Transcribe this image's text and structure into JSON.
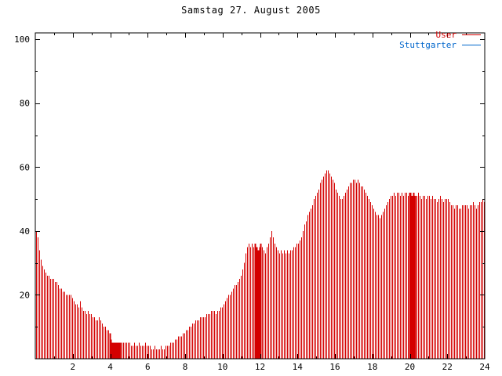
{
  "chart_data": {
    "type": "bar",
    "title": "Samstag 27. August 2005",
    "xlabel": "",
    "ylabel": "",
    "xlim": [
      0,
      24
    ],
    "ylim": [
      0,
      102
    ],
    "grid": false,
    "legend_position": "top-right",
    "x_tick_values": [
      2,
      4,
      6,
      8,
      10,
      12,
      14,
      16,
      18,
      20,
      22,
      24
    ],
    "x_tick_labels": [
      "2",
      "4",
      "6",
      "8",
      "10",
      "12",
      "14",
      "16",
      "18",
      "20",
      "22",
      "24"
    ],
    "x_minor_tick_step": 1,
    "y_tick_values": [
      20,
      40,
      60,
      80,
      100
    ],
    "y_tick_labels": [
      "20",
      "40",
      "60",
      "80",
      "100"
    ],
    "y_minor_tick_step": 10,
    "merged_bar_spans_hours": [
      [
        3.95,
        4.6
      ],
      [
        11.7,
        12.1
      ],
      [
        19.9,
        20.3
      ]
    ],
    "series": [
      {
        "name": "User",
        "color": "#d40000",
        "style": "impulses",
        "start_hour": 0,
        "interval_minutes": 5,
        "values": [
          40,
          38,
          34,
          31,
          29,
          28,
          27,
          26,
          26,
          25,
          25,
          25,
          24,
          24,
          23,
          22,
          22,
          21,
          21,
          20,
          20,
          20,
          20,
          19,
          18,
          17,
          17,
          16,
          18,
          16,
          15,
          15,
          14,
          15,
          14,
          14,
          13,
          13,
          12,
          12,
          13,
          12,
          11,
          10,
          10,
          9,
          9,
          8,
          6,
          5,
          5,
          5,
          5,
          5,
          5,
          5,
          5,
          5,
          5,
          5,
          5,
          4,
          4,
          5,
          4,
          4,
          5,
          4,
          4,
          4,
          5,
          4,
          4,
          4,
          3,
          3,
          4,
          3,
          3,
          3,
          4,
          3,
          3,
          4,
          4,
          4,
          5,
          5,
          5,
          6,
          6,
          7,
          7,
          7,
          8,
          8,
          9,
          9,
          10,
          10,
          11,
          11,
          12,
          12,
          12,
          13,
          13,
          13,
          13,
          14,
          14,
          14,
          15,
          15,
          15,
          14,
          15,
          15,
          16,
          16,
          17,
          18,
          19,
          20,
          20,
          21,
          22,
          23,
          23,
          24,
          25,
          26,
          28,
          30,
          33,
          35,
          36,
          35,
          36,
          35,
          36,
          35,
          34,
          35,
          36,
          35,
          34,
          33,
          35,
          36,
          38,
          40,
          38,
          36,
          35,
          34,
          33,
          34,
          33,
          34,
          33,
          34,
          33,
          34,
          34,
          35,
          35,
          36,
          36,
          37,
          38,
          40,
          42,
          43,
          45,
          46,
          47,
          48,
          50,
          51,
          52,
          53,
          55,
          56,
          57,
          58,
          59,
          59,
          58,
          57,
          56,
          55,
          53,
          52,
          51,
          50,
          50,
          51,
          52,
          53,
          54,
          55,
          55,
          56,
          56,
          55,
          56,
          55,
          54,
          54,
          53,
          52,
          51,
          50,
          49,
          48,
          47,
          46,
          45,
          45,
          44,
          45,
          46,
          47,
          48,
          49,
          50,
          51,
          51,
          52,
          51,
          52,
          52,
          51,
          52,
          51,
          52,
          52,
          51,
          52,
          52,
          51,
          52,
          51,
          51,
          52,
          51,
          50,
          51,
          51,
          50,
          51,
          51,
          50,
          51,
          50,
          50,
          49,
          50,
          51,
          50,
          49,
          50,
          50,
          50,
          49,
          48,
          48,
          47,
          48,
          48,
          47,
          47,
          48,
          48,
          48,
          48,
          47,
          48,
          48,
          49,
          48,
          47,
          48,
          49,
          49,
          50,
          49
        ]
      },
      {
        "name": "Stuttgarter",
        "color": "#0066cc",
        "style": "impulses",
        "values": []
      }
    ]
  }
}
